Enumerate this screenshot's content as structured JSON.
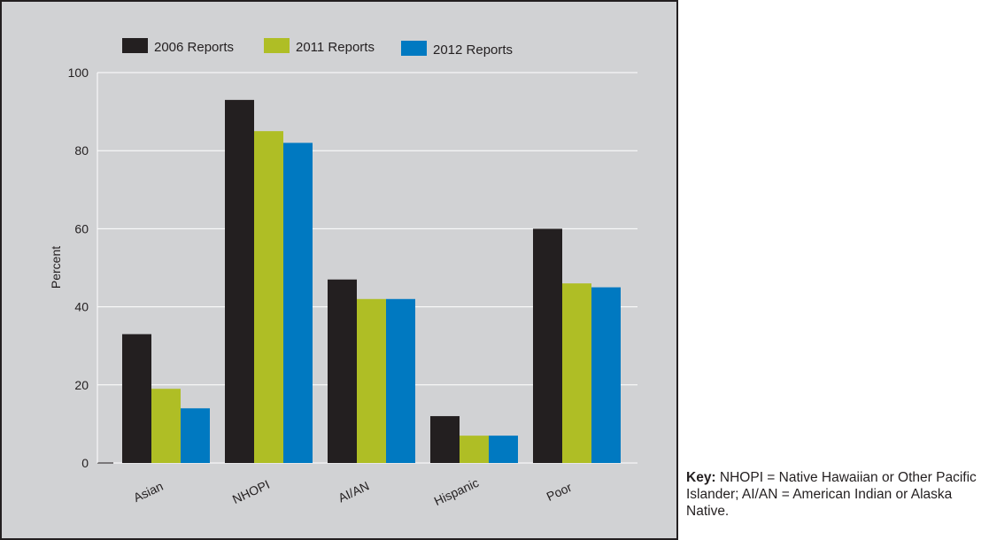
{
  "chart_data": {
    "type": "bar",
    "categories": [
      "Asian",
      "NHOPI",
      "AI/AN",
      "Hispanic",
      "Poor"
    ],
    "series": [
      {
        "name": "2006 Reports",
        "color": "#231f20",
        "values": [
          33,
          93,
          47,
          12,
          60
        ]
      },
      {
        "name": "2011 Reports",
        "color": "#afbe25",
        "values": [
          19,
          85,
          42,
          7,
          46
        ]
      },
      {
        "name": "2012 Reports",
        "color": "#0079c1",
        "values": [
          14,
          82,
          42,
          7,
          45
        ]
      }
    ],
    "ylabel": "Percent",
    "xlabel": "",
    "ylim": [
      0,
      100
    ],
    "yticks": [
      0,
      20,
      40,
      60,
      80,
      100
    ],
    "grid": true,
    "legend_position": "top-left",
    "background": "#d1d2d4"
  },
  "key_note": {
    "label": "Key:",
    "text": " NHOPI = Native Hawaiian or Other Pacific Islander; AI/AN = American Indian or Alaska Native."
  }
}
